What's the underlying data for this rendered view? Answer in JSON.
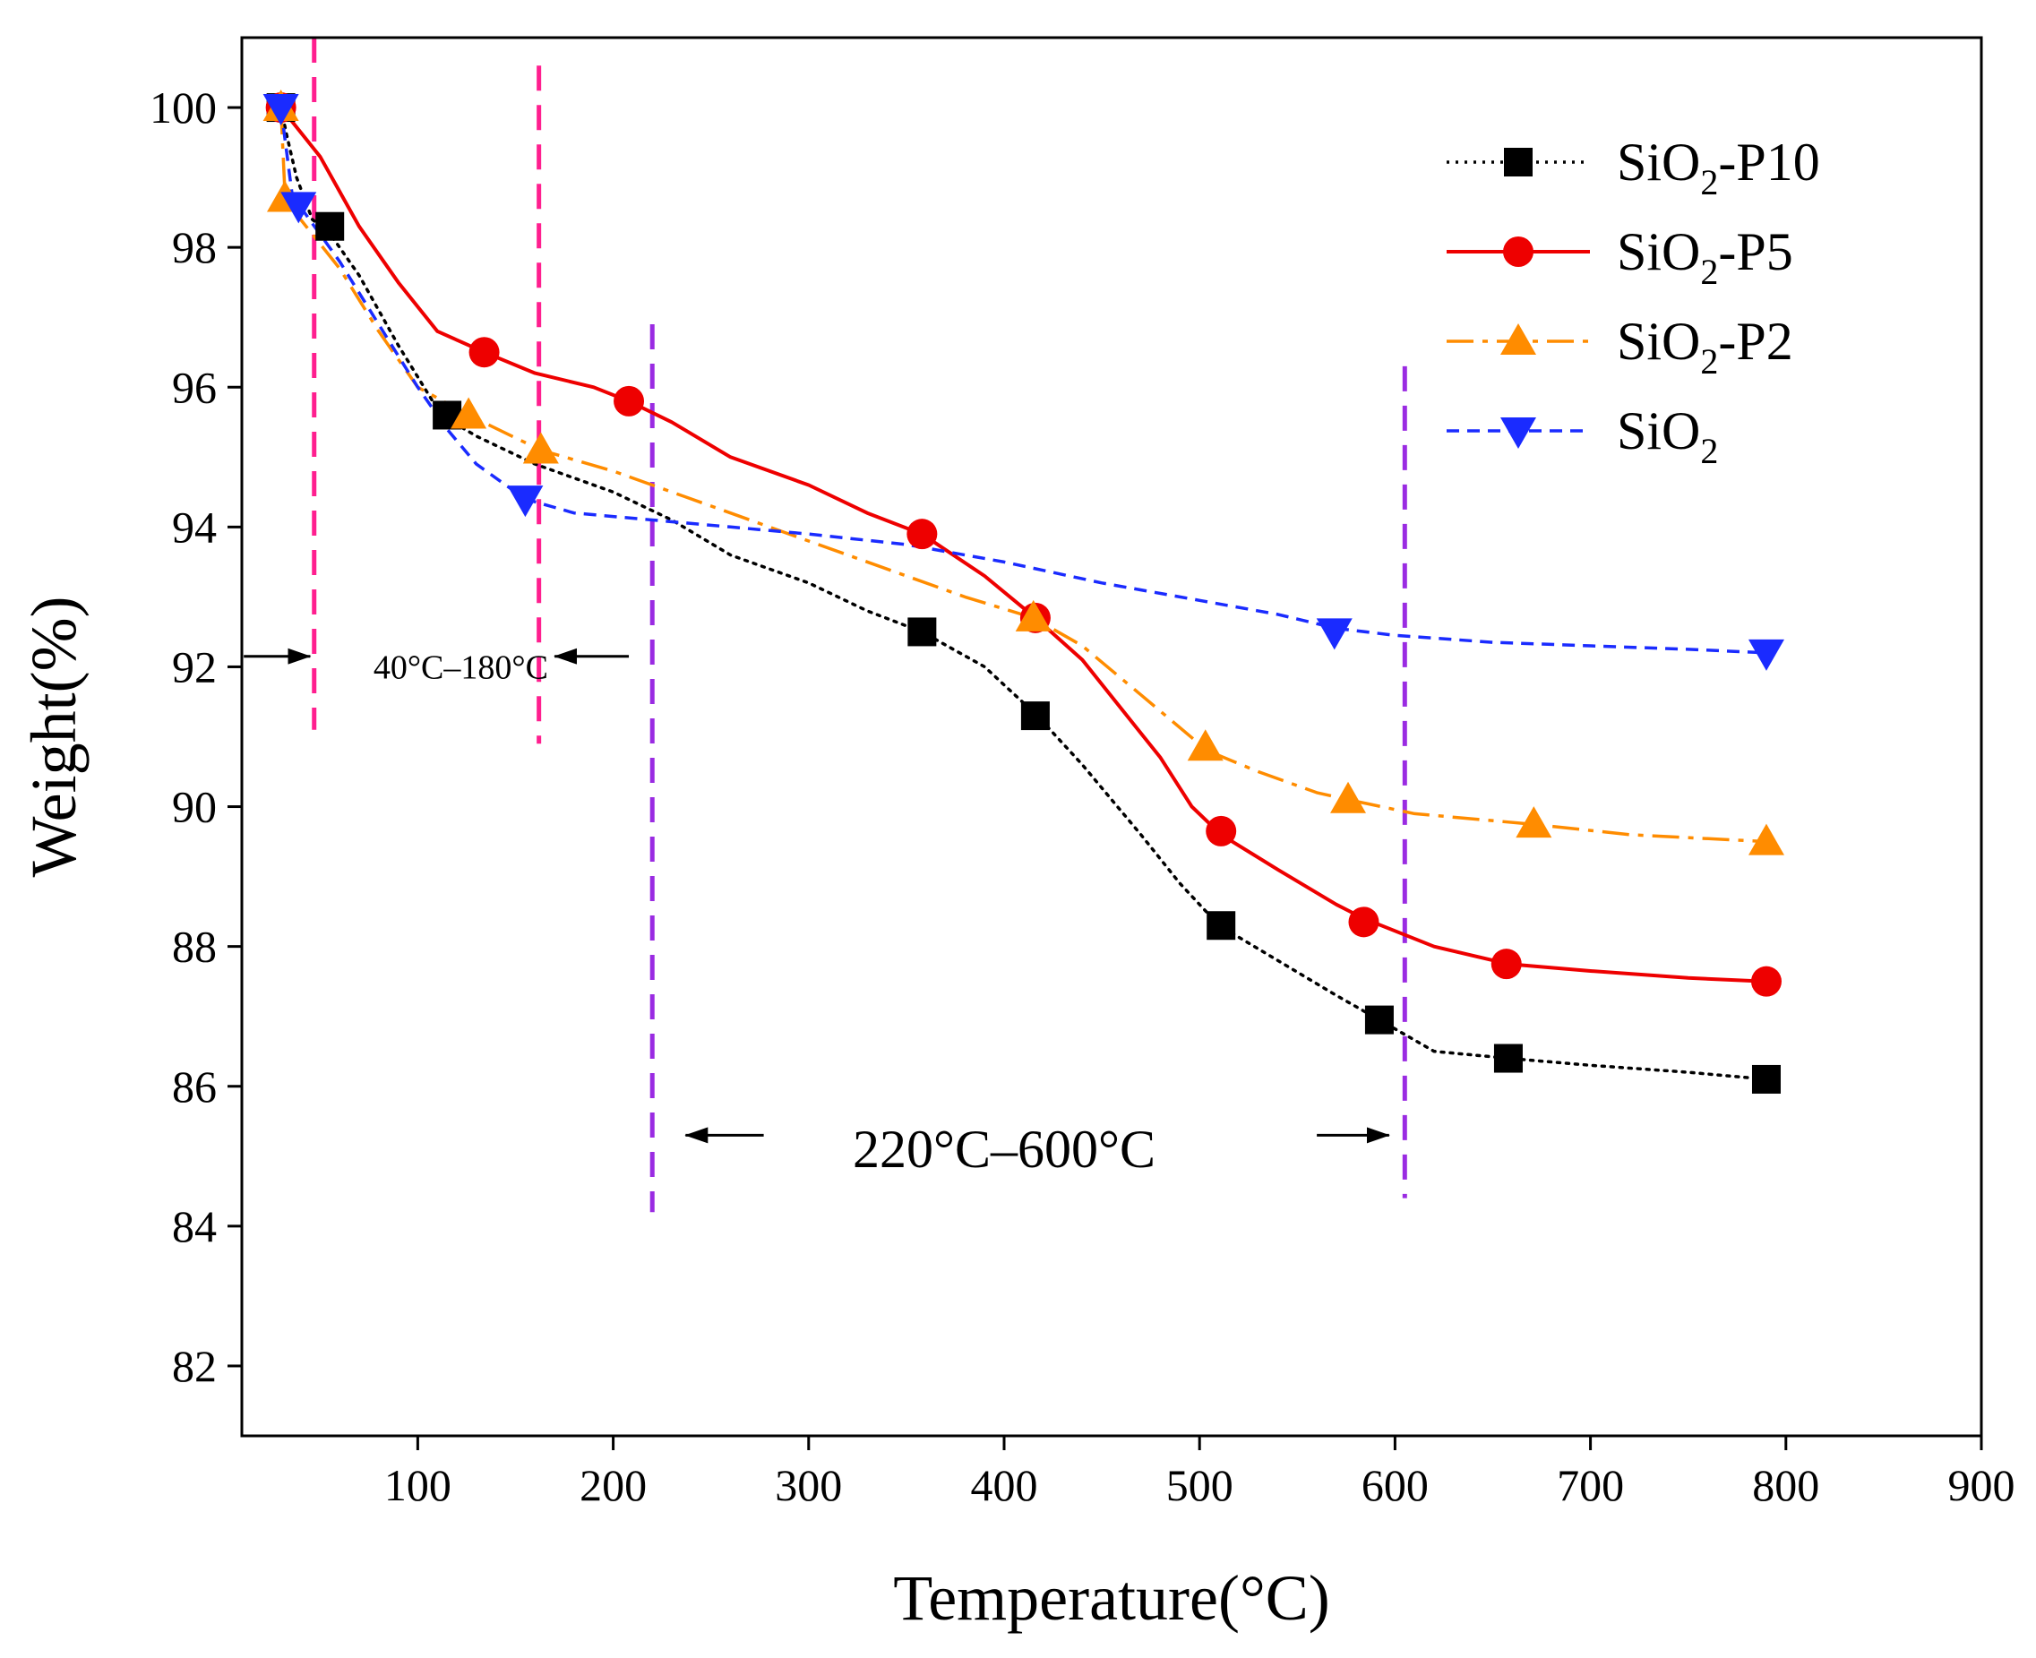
{
  "chart_data": {
    "type": "line",
    "xlabel": "Temperature(°C)",
    "ylabel": "Weight(%)",
    "xlim": [
      10,
      900
    ],
    "ylim": [
      81,
      101
    ],
    "xticks": [
      100,
      200,
      300,
      400,
      500,
      600,
      700,
      800,
      900
    ],
    "yticks": [
      82,
      84,
      86,
      88,
      90,
      92,
      94,
      96,
      98,
      100
    ],
    "legend_position": "top-right",
    "series": [
      {
        "name": "SiO2-P10",
        "name_main": "SiO",
        "name_sub": "2",
        "name_suffix": "-P10",
        "color": "#000000",
        "line_style": "dotted",
        "marker": "square",
        "line": [
          [
            30,
            100
          ],
          [
            33,
            99.6
          ],
          [
            38,
            99
          ],
          [
            46,
            98.4
          ],
          [
            55,
            98.2
          ],
          [
            70,
            97.6
          ],
          [
            90,
            96.6
          ],
          [
            112,
            95.6
          ],
          [
            130,
            95.3
          ],
          [
            160,
            94.9
          ],
          [
            200,
            94.5
          ],
          [
            230,
            94.1
          ],
          [
            260,
            93.6
          ],
          [
            300,
            93.2
          ],
          [
            330,
            92.8
          ],
          [
            358,
            92.5
          ],
          [
            390,
            92
          ],
          [
            417,
            91.3
          ],
          [
            440,
            90.6
          ],
          [
            470,
            89.6
          ],
          [
            490,
            88.9
          ],
          [
            510,
            88.3
          ],
          [
            540,
            87.8
          ],
          [
            570,
            87.3
          ],
          [
            592,
            86.95
          ],
          [
            620,
            86.5
          ],
          [
            658,
            86.4
          ],
          [
            700,
            86.3
          ],
          [
            750,
            86.2
          ],
          [
            790,
            86.1
          ]
        ],
        "markers": [
          [
            30,
            100
          ],
          [
            55,
            98.3
          ],
          [
            115,
            95.6
          ],
          [
            358,
            92.5
          ],
          [
            416,
            91.3
          ],
          [
            511,
            88.3
          ],
          [
            592,
            86.95
          ],
          [
            658,
            86.4
          ],
          [
            790,
            86.1
          ]
        ]
      },
      {
        "name": "SiO2-P5",
        "name_main": "SiO",
        "name_sub": "2",
        "name_suffix": "-P5",
        "color": "#ee0000",
        "line_style": "solid",
        "marker": "circle",
        "line": [
          [
            30,
            100
          ],
          [
            50,
            99.3
          ],
          [
            70,
            98.3
          ],
          [
            90,
            97.5
          ],
          [
            110,
            96.8
          ],
          [
            134,
            96.5
          ],
          [
            160,
            96.2
          ],
          [
            190,
            96
          ],
          [
            208,
            95.8
          ],
          [
            230,
            95.5
          ],
          [
            260,
            95
          ],
          [
            300,
            94.6
          ],
          [
            330,
            94.2
          ],
          [
            358,
            93.9
          ],
          [
            390,
            93.3
          ],
          [
            416,
            92.7
          ],
          [
            440,
            92.1
          ],
          [
            460,
            91.4
          ],
          [
            480,
            90.7
          ],
          [
            496,
            90
          ],
          [
            511,
            89.6
          ],
          [
            540,
            89.1
          ],
          [
            570,
            88.6
          ],
          [
            584,
            88.4
          ],
          [
            620,
            88
          ],
          [
            658,
            87.75
          ],
          [
            700,
            87.65
          ],
          [
            750,
            87.55
          ],
          [
            790,
            87.5
          ]
        ],
        "markers": [
          [
            30,
            100
          ],
          [
            134,
            96.5
          ],
          [
            208,
            95.8
          ],
          [
            358,
            93.9
          ],
          [
            416,
            92.7
          ],
          [
            511,
            89.65
          ],
          [
            584,
            88.35
          ],
          [
            657,
            87.75
          ],
          [
            790,
            87.5
          ]
        ]
      },
      {
        "name": "SiO2-P2",
        "name_main": "SiO",
        "name_sub": "2",
        "name_suffix": "-P2",
        "color": "#ff8c00",
        "line_style": "dash-dot",
        "marker": "triangle-up",
        "line": [
          [
            30,
            100
          ],
          [
            32,
            98.8
          ],
          [
            40,
            98.4
          ],
          [
            60,
            97.7
          ],
          [
            80,
            96.8
          ],
          [
            100,
            96
          ],
          [
            126,
            95.6
          ],
          [
            163,
            95.1
          ],
          [
            200,
            94.8
          ],
          [
            250,
            94.3
          ],
          [
            300,
            93.8
          ],
          [
            350,
            93.3
          ],
          [
            380,
            93
          ],
          [
            415,
            92.7
          ],
          [
            440,
            92.3
          ],
          [
            470,
            91.6
          ],
          [
            504,
            90.8
          ],
          [
            530,
            90.5
          ],
          [
            560,
            90.2
          ],
          [
            576,
            90.1
          ],
          [
            610,
            89.9
          ],
          [
            670,
            89.75
          ],
          [
            720,
            89.6
          ],
          [
            790,
            89.5
          ]
        ],
        "markers": [
          [
            30,
            100
          ],
          [
            32,
            98.7
          ],
          [
            126,
            95.6
          ],
          [
            163,
            95.1
          ],
          [
            415,
            92.7
          ],
          [
            503,
            90.85
          ],
          [
            576,
            90.1
          ],
          [
            671,
            89.75
          ],
          [
            790,
            89.5
          ]
        ]
      },
      {
        "name": "SiO2",
        "name_main": "SiO",
        "name_sub": "2",
        "name_suffix": "",
        "color": "#1a2bff",
        "line_style": "dashed",
        "marker": "triangle-down",
        "line": [
          [
            30,
            100
          ],
          [
            36,
            98.7
          ],
          [
            42,
            98.5
          ],
          [
            60,
            97.8
          ],
          [
            80,
            96.9
          ],
          [
            100,
            96
          ],
          [
            115,
            95.4
          ],
          [
            130,
            94.9
          ],
          [
            155,
            94.4
          ],
          [
            180,
            94.2
          ],
          [
            220,
            94.1
          ],
          [
            260,
            94
          ],
          [
            300,
            93.9
          ],
          [
            350,
            93.75
          ],
          [
            400,
            93.5
          ],
          [
            450,
            93.2
          ],
          [
            500,
            92.95
          ],
          [
            540,
            92.75
          ],
          [
            570,
            92.55
          ],
          [
            600,
            92.45
          ],
          [
            650,
            92.35
          ],
          [
            700,
            92.3
          ],
          [
            750,
            92.25
          ],
          [
            790,
            92.2
          ]
        ],
        "markers": [
          [
            30,
            100
          ],
          [
            39,
            98.6
          ],
          [
            155,
            94.4
          ],
          [
            569,
            92.5
          ],
          [
            790,
            92.2
          ]
        ]
      }
    ],
    "annotations": [
      {
        "text": "40°C–180°C",
        "x": 122,
        "y": 92,
        "size": "small"
      },
      {
        "text": "220°C–600°C",
        "x": 400,
        "y": 85.1,
        "size": "large"
      }
    ],
    "region_arrows": [
      {
        "from": 11,
        "to": 45,
        "y": 92.15
      },
      {
        "from": 208,
        "to": 170,
        "y": 92.15
      },
      {
        "from": 277,
        "to": 237,
        "y": 85.3
      },
      {
        "from": 560,
        "to": 597,
        "y": 85.3
      }
    ],
    "vertical_markers": [
      {
        "x": 47,
        "y_from": 101,
        "y_to": 91.1,
        "color": "#ff1f8f"
      },
      {
        "x": 162,
        "y_from": 100.6,
        "y_to": 90.9,
        "color": "#ff1f8f"
      },
      {
        "x": 220,
        "y_from": 96.9,
        "y_to": 84.2,
        "color": "#9a2be2"
      },
      {
        "x": 605,
        "y_from": 96.3,
        "y_to": 84.4,
        "color": "#9a2be2"
      }
    ]
  }
}
